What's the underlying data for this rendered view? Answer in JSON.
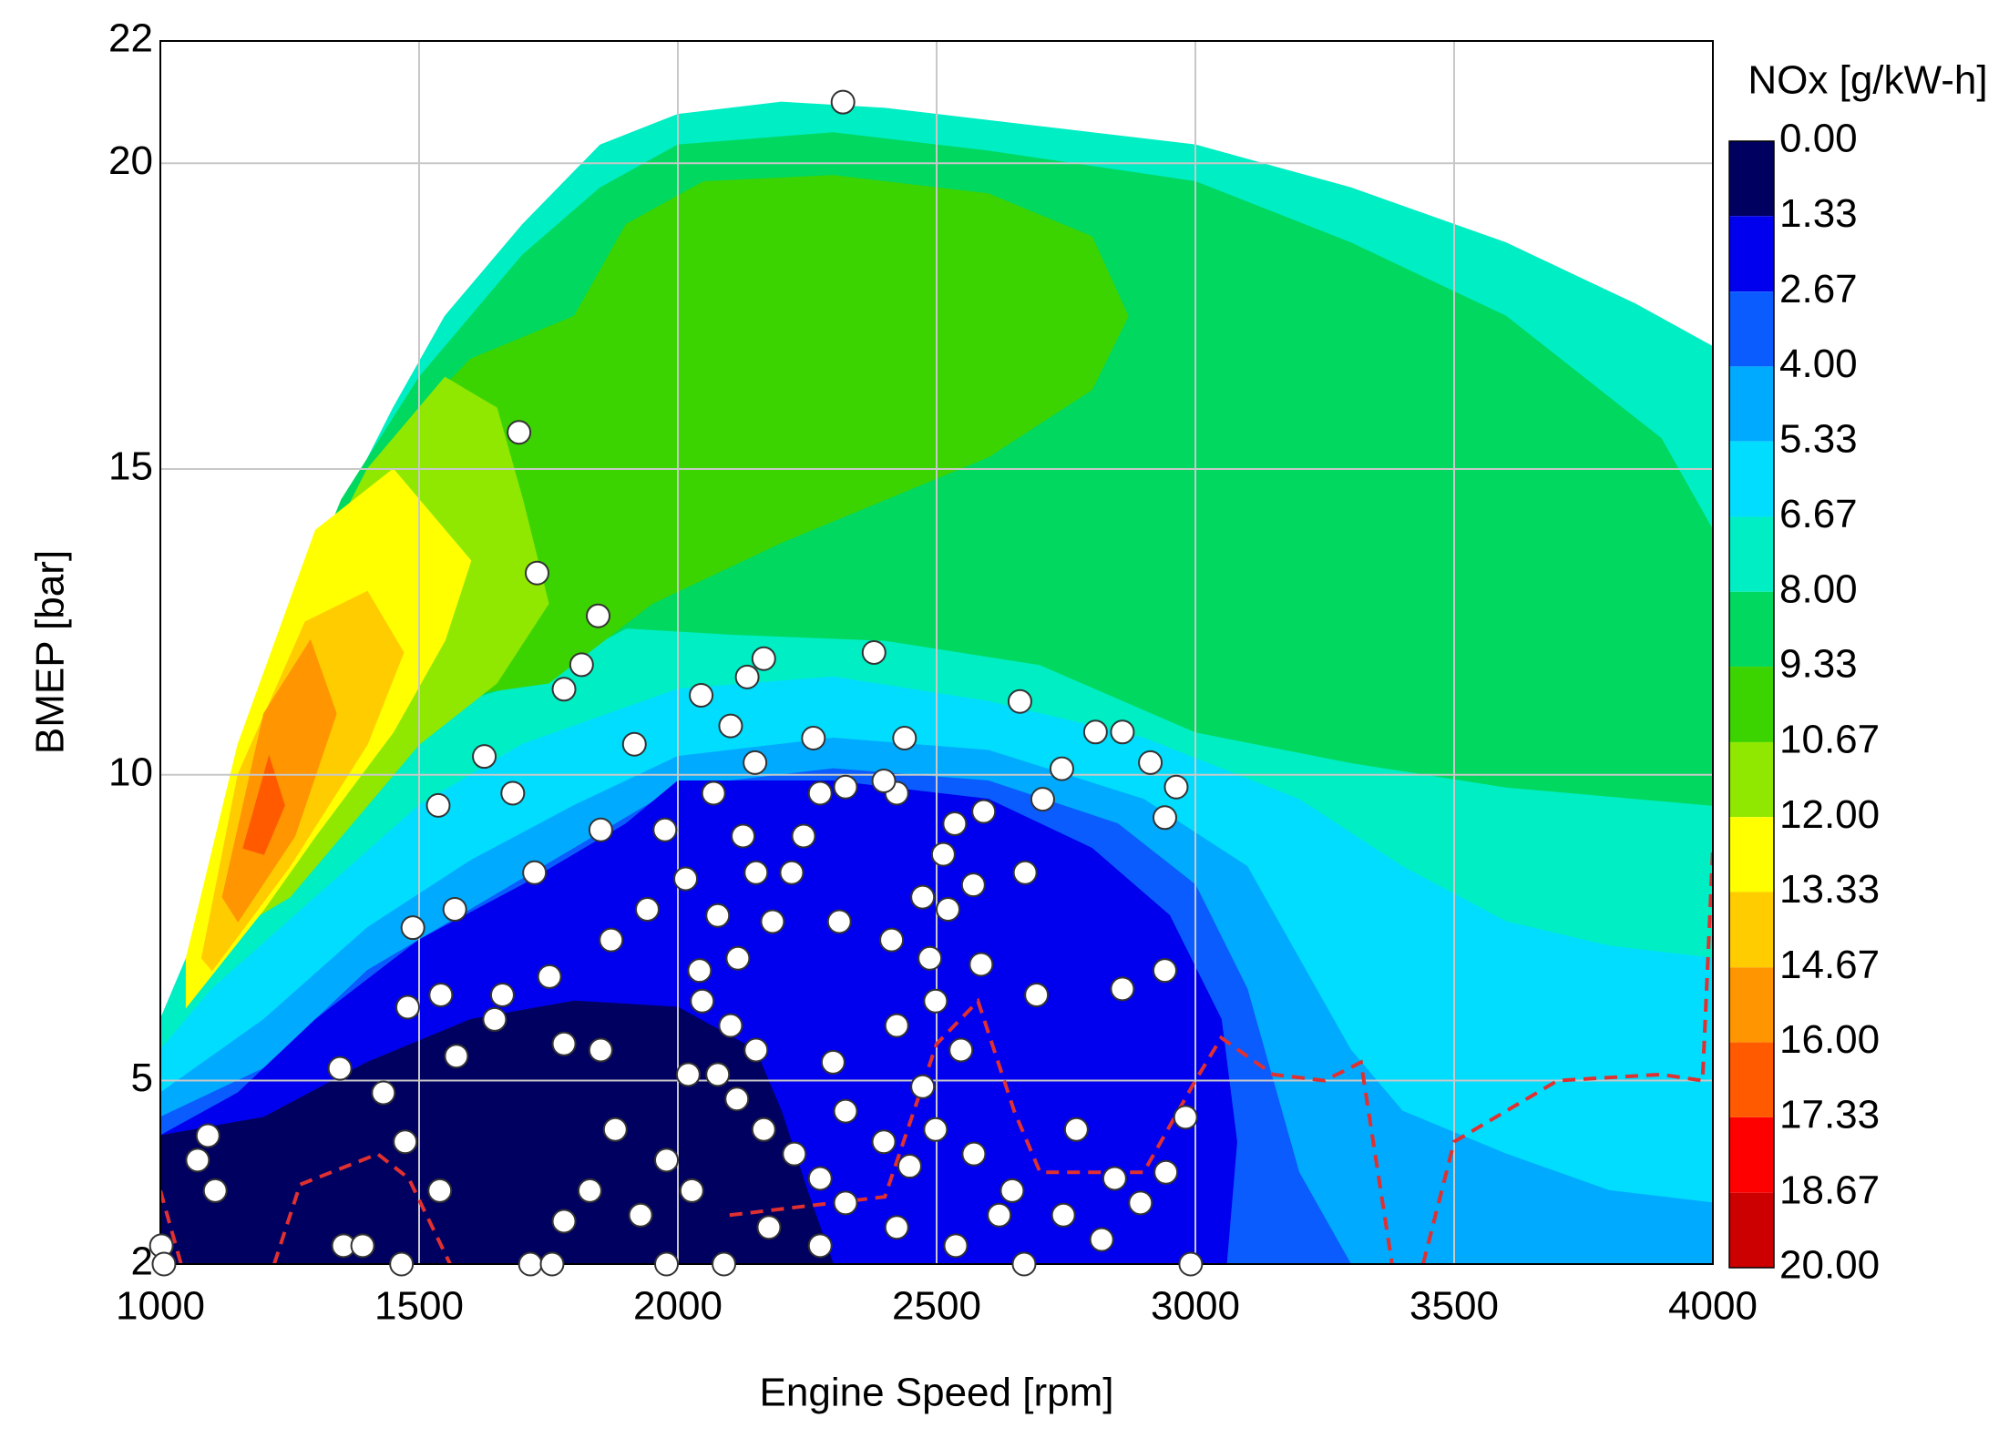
{
  "chart_data": {
    "type": "contour",
    "x_label": "Engine Speed [rpm]",
    "y_label": "BMEP [bar]",
    "xlim": [
      1000,
      4000
    ],
    "xticks": [
      1000,
      1500,
      2000,
      2500,
      3000,
      3500,
      4000
    ],
    "ylim": [
      2,
      22
    ],
    "yticks": [
      2,
      5,
      10,
      15,
      20,
      22
    ],
    "grid": true,
    "colorbar": {
      "title": "NOx [g/kW-h]",
      "ticks": [
        {
          "value": 0,
          "label": "0.00"
        },
        1.33,
        2.67,
        {
          "value": 4,
          "label": "4.00"
        },
        5.33,
        6.67,
        {
          "value": 8,
          "label": "8.00"
        },
        9.33,
        10.67,
        {
          "value": 12,
          "label": "12.00"
        },
        13.33,
        14.67,
        {
          "value": 16,
          "label": "16.00"
        },
        17.33,
        18.67,
        {
          "value": 20,
          "label": "20.00"
        }
      ],
      "colors": [
        "#000060",
        "#0000ee",
        "#0a5cff",
        "#00aaff",
        "#00ddff",
        "#00eec4",
        "#00d860",
        "#3cd400",
        "#90e800",
        "#ffff00",
        "#ffcc00",
        "#ff9500",
        "#ff5a00",
        "#ff0000",
        "#cc0000"
      ]
    },
    "regions": [
      {
        "color": "#00eec4",
        "x": [
          1000,
          1000,
          1100,
          1200,
          1300,
          1450,
          1550,
          1700,
          1850,
          2000,
          2200,
          2400,
          2700,
          3000,
          3300,
          3600,
          3850,
          4000,
          4000
        ],
        "y": [
          2,
          6,
          8,
          11,
          13.5,
          16,
          17.5,
          19,
          20.3,
          20.8,
          21,
          20.9,
          20.6,
          20.3,
          19.6,
          18.7,
          17.7,
          17,
          2
        ]
      },
      {
        "color": "#00d860",
        "x": [
          1230,
          1350,
          1500,
          1700,
          1850,
          2000,
          2300,
          2600,
          3000,
          3300,
          3600,
          3900,
          4000,
          4000,
          3600,
          3300,
          3000,
          2700,
          2400,
          2100,
          1900,
          1700,
          1500
        ],
        "y": [
          12,
          14.5,
          16.5,
          18.5,
          19.6,
          20.3,
          20.5,
          20.2,
          19.7,
          18.7,
          17.5,
          15.5,
          14,
          9.5,
          9.8,
          10.2,
          10.7,
          11.8,
          12.2,
          12.3,
          12.4,
          11.5,
          11
        ]
      },
      {
        "color": "#3cd400",
        "x": [
          1300,
          1450,
          1600,
          1800,
          1900,
          2050,
          2300,
          2600,
          2800,
          2870,
          2800,
          2600,
          2400,
          2200,
          2000,
          1950,
          1750,
          1500
        ],
        "y": [
          13.5,
          15.5,
          16.8,
          17.5,
          19,
          19.7,
          19.8,
          19.5,
          18.8,
          17.5,
          16.3,
          15.2,
          14.5,
          13.8,
          13,
          12.8,
          11.5,
          11.2
        ]
      },
      {
        "color": "#90e800",
        "x": [
          1150,
          1250,
          1400,
          1550,
          1650,
          1700,
          1750,
          1650,
          1500,
          1350,
          1250,
          1150
        ],
        "y": [
          9,
          12.5,
          15,
          16.5,
          16,
          14.5,
          12.8,
          11.5,
          10.5,
          9,
          8,
          7.5
        ]
      },
      {
        "color": "#ffff00",
        "x": [
          1050,
          1150,
          1300,
          1450,
          1600,
          1550,
          1450,
          1300,
          1200,
          1050
        ],
        "y": [
          7,
          10.5,
          14,
          15,
          13.5,
          12.2,
          10.7,
          9,
          7.8,
          6.2
        ]
      },
      {
        "color": "#ffcc00",
        "x": [
          1080,
          1150,
          1280,
          1400,
          1470,
          1400,
          1250,
          1100
        ],
        "y": [
          7,
          10,
          12.5,
          13,
          12,
          10.5,
          8.5,
          6.8
        ]
      },
      {
        "color": "#ff9500",
        "x": [
          1120,
          1200,
          1290,
          1340,
          1260,
          1150
        ],
        "y": [
          8,
          11,
          12.2,
          11,
          9,
          7.6
        ]
      },
      {
        "color": "#ff5a00",
        "x": [
          1160,
          1210,
          1240,
          1200
        ],
        "y": [
          8.8,
          10.3,
          9.5,
          8.7
        ]
      },
      {
        "color": "#00ddff",
        "x": [
          1000,
          1100,
          1300,
          1500,
          1700,
          2000,
          2300,
          2600,
          2900,
          3200,
          3400,
          3600,
          3800,
          4000,
          4000,
          1000
        ],
        "y": [
          5.5,
          6.5,
          8,
          9.5,
          10.5,
          11.4,
          11.6,
          11.2,
          10.6,
          9.6,
          8.5,
          7.6,
          7.2,
          7,
          2,
          2
        ]
      },
      {
        "color": "#00aaff",
        "x": [
          1000,
          1200,
          1400,
          1600,
          1800,
          2000,
          2300,
          2600,
          2900,
          3100,
          3200,
          3300,
          3400,
          3600,
          3800,
          4000,
          4000,
          1000
        ],
        "y": [
          4.8,
          6,
          7.5,
          8.6,
          9.5,
          10.3,
          10.6,
          10.4,
          9.6,
          8.5,
          7,
          5.5,
          4.5,
          3.8,
          3.2,
          3,
          2,
          2
        ]
      },
      {
        "color": "#0a5cff",
        "x": [
          1000,
          1200,
          1400,
          1600,
          1800,
          2000,
          2300,
          2600,
          2850,
          3000,
          3100,
          3150,
          3200,
          3300,
          1000
        ],
        "y": [
          4.4,
          5.2,
          6.8,
          7.8,
          8.8,
          9.8,
          10.1,
          9.9,
          9.2,
          8.2,
          6.5,
          5,
          3.5,
          2,
          2
        ]
      },
      {
        "color": "#0000ee",
        "x": [
          1000,
          1150,
          1300,
          1500,
          1700,
          1900,
          2000,
          2300,
          2600,
          2800,
          2950,
          3050,
          3080,
          3060,
          1000
        ],
        "y": [
          4.1,
          4.8,
          6,
          7.3,
          8.2,
          9.2,
          9.9,
          9.9,
          9.6,
          8.8,
          7.7,
          6,
          4,
          2,
          2
        ]
      },
      {
        "color": "#000060",
        "x": [
          1000,
          1200,
          1400,
          1600,
          1800,
          2000,
          2150,
          2200,
          2250,
          2300,
          1000
        ],
        "y": [
          4.1,
          4.4,
          5.3,
          6,
          6.3,
          6.2,
          5.5,
          4.5,
          3.2,
          2,
          2
        ]
      }
    ],
    "series": [
      {
        "type": "line",
        "color": "#e03030",
        "dashed": true,
        "x": [
          1000,
          1040,
          null,
          1220,
          1270,
          1420,
          1480,
          1560,
          null,
          2100,
          2400,
          2500,
          2580,
          2650,
          2700,
          2900,
          3000,
          3050,
          3150,
          3250,
          3320,
          3380,
          null,
          3440,
          3500,
          3700,
          3900,
          3980,
          4000
        ],
        "y": [
          3.2,
          2,
          null,
          2,
          3.3,
          3.8,
          3.4,
          2,
          null,
          2.8,
          3.1,
          5.6,
          6.3,
          4.5,
          3.5,
          3.5,
          5,
          5.7,
          5.1,
          5,
          5.3,
          2,
          null,
          2,
          4,
          5,
          5.1,
          5,
          8.8
        ]
      },
      {
        "type": "scatter",
        "color": "#ffffff",
        "x": [
          2319,
          1693,
          1728,
          1846,
          1814,
          1780,
          2379,
          2166,
          2134,
          2045,
          2102,
          1916,
          1626,
          1681,
          1537,
          1851,
          1975,
          2069,
          2149,
          2262,
          2438,
          2661,
          2742,
          2807,
          2859,
          2913,
          2963,
          2941,
          2705,
          2591,
          2535,
          2126,
          2513,
          2671,
          2571,
          1723,
          1569,
          1488,
          1871,
          1941,
          2015,
          2077,
          2183,
          2312,
          2413,
          2487,
          2586,
          2693,
          2859,
          2941,
          1752,
          1661,
          1542,
          1478,
          1646,
          1780,
          1851,
          1572,
          1347,
          1431,
          1473,
          1540,
          1354,
          1391,
          1466,
          1715,
          1757,
          1092,
          1072,
          1106,
          1002,
          1007,
          2020,
          2077,
          2114,
          2166,
          2225,
          2275,
          2324,
          2398,
          2448,
          2498,
          2572,
          2646,
          2745,
          2819,
          2894,
          2981,
          2991,
          2669,
          1928,
          1978,
          1879,
          1830,
          1780,
          2047,
          2102,
          2151,
          2300,
          2423,
          2498,
          2547,
          2473,
          2324,
          2027,
          2176,
          2423,
          2537,
          2621,
          2275,
          1978,
          2089,
          2770,
          2844,
          2943,
          2423,
          2324,
          2275,
          2398,
          2243,
          2220,
          2473,
          2522,
          2151,
          2042,
          2116
        ],
        "y": [
          21.0,
          15.6,
          13.3,
          12.6,
          11.8,
          11.4,
          12.0,
          11.9,
          11.6,
          11.3,
          10.8,
          10.5,
          10.3,
          9.7,
          9.5,
          9.1,
          9.1,
          9.7,
          10.2,
          10.6,
          10.6,
          11.2,
          10.1,
          10.7,
          10.7,
          10.2,
          9.8,
          9.3,
          9.6,
          9.4,
          9.2,
          9.0,
          8.7,
          8.4,
          8.2,
          8.4,
          7.8,
          7.5,
          7.3,
          7.8,
          8.3,
          7.7,
          7.6,
          7.6,
          7.3,
          7.0,
          6.9,
          6.4,
          6.5,
          6.8,
          6.7,
          6.4,
          6.4,
          6.2,
          6.0,
          5.6,
          5.5,
          5.4,
          5.2,
          4.8,
          4.0,
          3.2,
          2.3,
          2.3,
          2.0,
          2.0,
          2.0,
          4.1,
          3.7,
          3.2,
          2.3,
          2.0,
          5.1,
          5.1,
          4.7,
          4.2,
          3.8,
          3.4,
          3.0,
          4.0,
          3.6,
          4.2,
          3.8,
          3.2,
          2.8,
          2.4,
          3.0,
          4.4,
          2.0,
          2.0,
          2.8,
          3.7,
          4.2,
          3.2,
          2.7,
          6.3,
          5.9,
          5.5,
          5.3,
          5.9,
          6.3,
          5.5,
          4.9,
          4.5,
          3.2,
          2.6,
          2.6,
          2.3,
          2.8,
          2.3,
          2.0,
          2.0,
          4.2,
          3.4,
          3.5,
          9.7,
          9.8,
          9.7,
          9.9,
          9.0,
          8.4,
          8.0,
          7.8,
          8.4,
          6.8,
          7.0
        ]
      }
    ]
  }
}
